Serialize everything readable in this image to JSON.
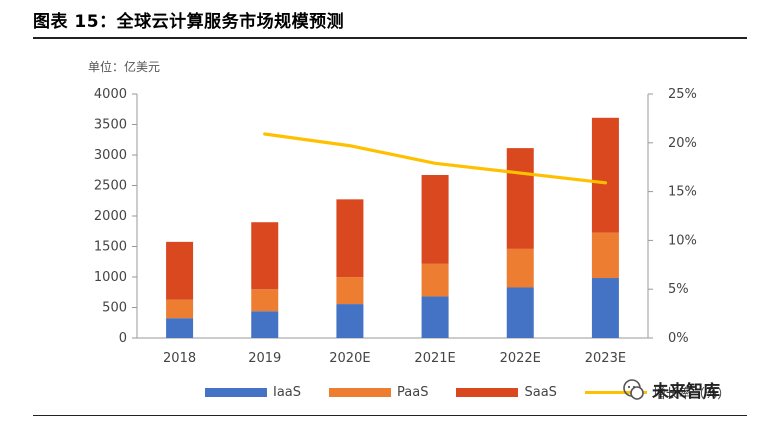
{
  "title": "图表 15：全球云计算服务市场规模预测",
  "unit_label": "单位：亿美元",
  "watermark": "未来智库",
  "chart_data": {
    "type": "bar",
    "stacked": true,
    "categories": [
      "2018",
      "2019",
      "2020E",
      "2021E",
      "2022E",
      "2023E"
    ],
    "series": [
      {
        "name": "IaaS",
        "color": "#4472C4",
        "values": [
          325,
          439,
          556,
          681,
          828,
          983
        ],
        "axis": "left"
      },
      {
        "name": "PaaS",
        "color": "#ED7D31",
        "values": [
          304,
          360,
          442,
          535,
          633,
          744
        ],
        "axis": "left"
      },
      {
        "name": "SaaS",
        "color": "#D9481F",
        "values": [
          947,
          1099,
          1275,
          1456,
          1652,
          1883
        ],
        "axis": "left"
      }
    ],
    "line_series": {
      "name": "增长率（%）",
      "color": "#FFC000",
      "values": [
        null,
        20.9,
        19.7,
        17.9,
        16.9,
        15.9
      ],
      "axis": "right"
    },
    "y_left": {
      "min": 0,
      "max": 4000,
      "ticks": [
        "0",
        "500",
        "1000",
        "1500",
        "2000",
        "2500",
        "3000",
        "3500",
        "4000"
      ]
    },
    "y_right": {
      "min": 0,
      "max": 25,
      "ticks": [
        "0%",
        "5%",
        "10%",
        "15%",
        "20%",
        "25%"
      ]
    },
    "grid": false,
    "legend_position": "bottom"
  }
}
